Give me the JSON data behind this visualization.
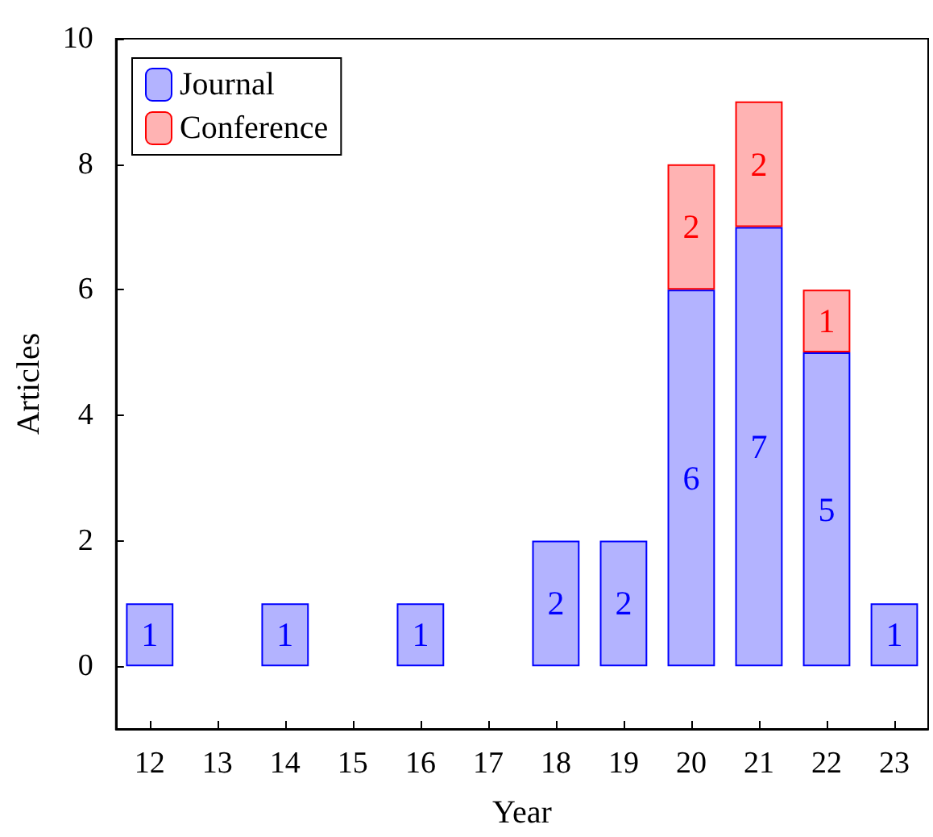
{
  "chart_data": {
    "type": "bar",
    "xlabel": "Year",
    "ylabel": "Articles",
    "stacked": true,
    "legend": "top left",
    "grid": false,
    "categories": [
      "12",
      "13",
      "14",
      "15",
      "16",
      "17",
      "18",
      "19",
      "20",
      "21",
      "22",
      "23"
    ],
    "ylim": [
      -1,
      10
    ],
    "yticks": [
      0,
      2,
      4,
      6,
      8,
      10
    ],
    "series": [
      {
        "name": "Journal",
        "color": "#b3b3ff",
        "values": [
          1,
          null,
          1,
          null,
          1,
          null,
          2,
          2,
          6,
          7,
          5,
          1
        ],
        "value_labels": [
          "1",
          null,
          "1",
          null,
          "1",
          null,
          "2",
          "2",
          "6",
          "7",
          "5",
          "1"
        ]
      },
      {
        "name": "Conference",
        "color": "#ffb3b3",
        "values": [
          null,
          null,
          null,
          null,
          null,
          null,
          null,
          null,
          2,
          2,
          1,
          null
        ],
        "value_labels": [
          null,
          null,
          null,
          null,
          null,
          null,
          null,
          null,
          "2",
          "2",
          "1",
          null
        ]
      }
    ]
  }
}
